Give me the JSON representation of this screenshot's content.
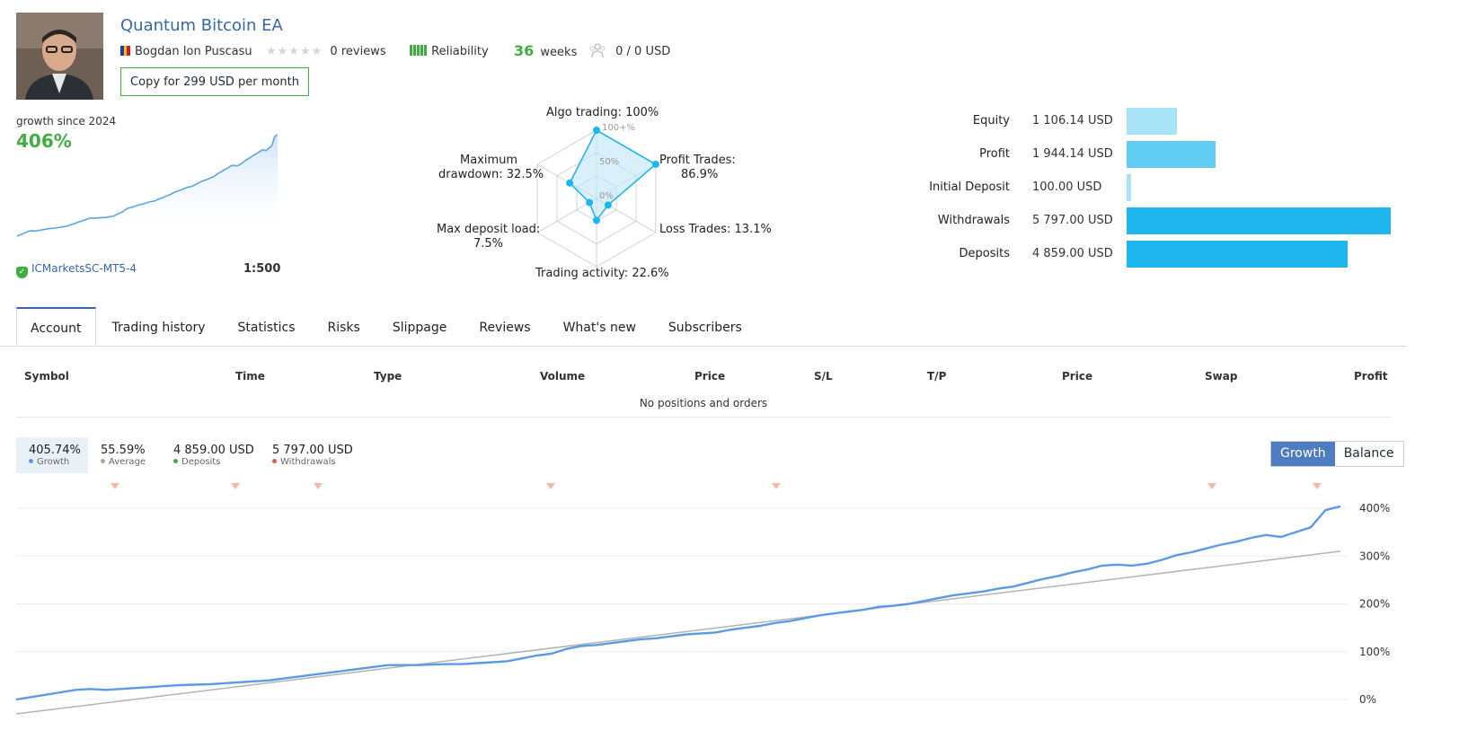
{
  "header": {
    "title": "Quantum Bitcoin EA",
    "author": "Bogdan Ion Puscasu",
    "reviews": "0 reviews",
    "reliability_label": "Reliability",
    "weeks_value": "36",
    "weeks_label": "weeks",
    "subscribers": "0 / 0 USD",
    "copy_button": "Copy for 299 USD per month",
    "colors": {
      "accent_blue": "#3567a9",
      "green": "#3fae3f"
    }
  },
  "growth_card": {
    "label": "growth since 2024",
    "value": "406%",
    "broker": "ICMarketsSC-MT5-4",
    "leverage": "1:500"
  },
  "radar": {
    "algo": "Algo trading: 100%",
    "profit_trades_1": "Profit Trades:",
    "profit_trades_2": "86.9%",
    "loss_trades": "Loss Trades: 13.1%",
    "activity": "Trading activity: 22.6%",
    "deposit_load_1": "Max deposit load:",
    "deposit_load_2": "7.5%",
    "drawdown_1": "Maximum",
    "drawdown_2": "drawdown: 32.5%",
    "grid_100": "100+%",
    "grid_50": "50%",
    "grid_0": "0%",
    "values": {
      "algo": 100,
      "profit_trades": 86.9,
      "loss_trades": 13.1,
      "activity": 22.6,
      "deposit_load": 7.5,
      "drawdown": 32.5
    }
  },
  "stats": [
    {
      "label": "Equity",
      "value": "1 106.14 USD",
      "amount": 1106.14,
      "color": "#a8e3f8"
    },
    {
      "label": "Profit",
      "value": "1 944.14 USD",
      "amount": 1944.14,
      "color": "#62cdf2"
    },
    {
      "label": "Initial Deposit",
      "value": "100.00 USD",
      "amount": 100.0,
      "color": "#a8e3f8"
    },
    {
      "label": "Withdrawals",
      "value": "5 797.00 USD",
      "amount": 5797.0,
      "color": "#1fb6ee"
    },
    {
      "label": "Deposits",
      "value": "4 859.00 USD",
      "amount": 4859.0,
      "color": "#1fb6ee"
    }
  ],
  "tabs": [
    "Account",
    "Trading history",
    "Statistics",
    "Risks",
    "Slippage",
    "Reviews",
    "What's new",
    "Subscribers"
  ],
  "positions": {
    "columns": [
      "Symbol",
      "Time",
      "Type",
      "Volume",
      "Price",
      "S/L",
      "T/P",
      "Price",
      "Swap",
      "Profit"
    ],
    "empty": "No positions and orders"
  },
  "chart_legend": {
    "growth_value": "405.74%",
    "growth_label": "Growth",
    "average_value": "55.59%",
    "average_label": "Average",
    "deposits_value": "4 859.00 USD",
    "deposits_label": "Deposits",
    "withdrawals_value": "5 797.00 USD",
    "withdrawals_label": "Withdrawals",
    "toggle_growth": "Growth",
    "toggle_balance": "Balance"
  },
  "chart_data": {
    "type": "line",
    "ylim": [
      0,
      400
    ],
    "yticks": [
      "400%",
      "300%",
      "200%",
      "100%",
      "0%"
    ],
    "series": [
      {
        "name": "Growth",
        "color": "#5b9be6",
        "values": [
          0,
          5,
          10,
          15,
          20,
          22,
          20,
          22,
          24,
          26,
          28,
          30,
          31,
          32,
          34,
          36,
          38,
          40,
          44,
          48,
          52,
          56,
          60,
          64,
          68,
          72,
          72,
          72,
          73,
          74,
          74,
          76,
          78,
          80,
          86,
          92,
          96,
          106,
          112,
          114,
          118,
          122,
          126,
          128,
          132,
          136,
          138,
          140,
          146,
          150,
          154,
          160,
          164,
          170,
          176,
          180,
          184,
          188,
          194,
          196,
          200,
          206,
          212,
          218,
          222,
          226,
          232,
          236,
          244,
          252,
          258,
          266,
          272,
          280,
          282,
          280,
          284,
          292,
          302,
          308,
          316,
          324,
          330,
          338,
          344,
          340,
          350,
          360,
          396,
          404
        ]
      },
      {
        "name": "Average",
        "color": "#b3b3b3",
        "values": [
          -30,
          310
        ]
      }
    ],
    "withdrawal_markers": 7
  }
}
